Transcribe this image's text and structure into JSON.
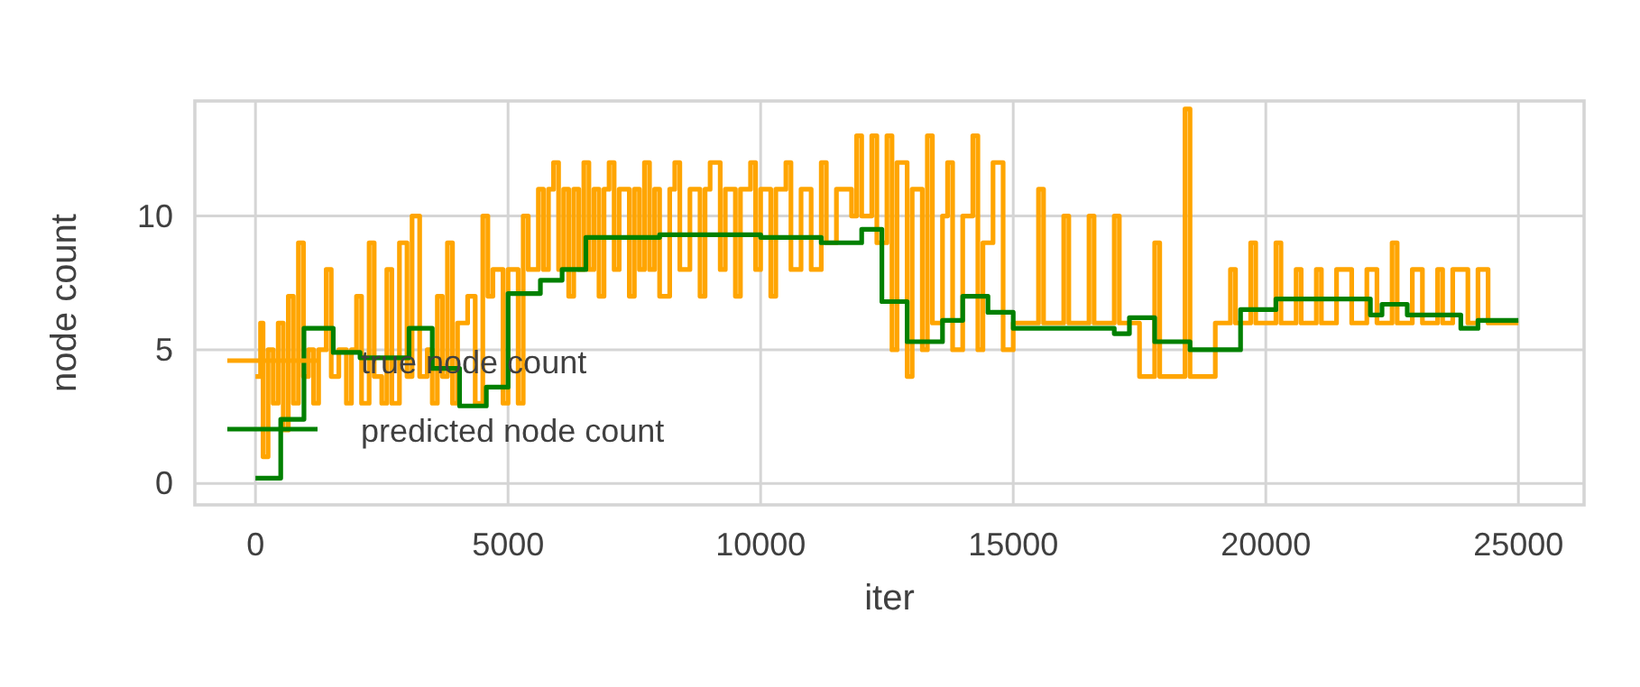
{
  "chart_data": {
    "type": "step",
    "xlabel": "iter",
    "ylabel": "node count",
    "xlim": [
      -1200,
      26300
    ],
    "ylim": [
      -0.8,
      14.3
    ],
    "xticks": [
      0,
      5000,
      10000,
      15000,
      20000,
      25000
    ],
    "yticks": [
      0,
      5,
      10
    ],
    "grid": true,
    "legend": "left",
    "series": [
      {
        "name": "true node count",
        "color": "#ffa500",
        "x": [
          0,
          100,
          150,
          250,
          350,
          450,
          550,
          650,
          750,
          850,
          950,
          1050,
          1150,
          1250,
          1400,
          1500,
          1650,
          1800,
          1900,
          2000,
          2100,
          2250,
          2350,
          2500,
          2600,
          2700,
          2850,
          3000,
          3100,
          3250,
          3400,
          3500,
          3600,
          3700,
          3800,
          3900,
          4000,
          4200,
          4350,
          4500,
          4600,
          4700,
          4900,
          5000,
          5200,
          5300,
          5400,
          5600,
          5700,
          5800,
          5900,
          6000,
          6100,
          6200,
          6300,
          6400,
          6500,
          6600,
          6700,
          6800,
          6900,
          7000,
          7100,
          7200,
          7400,
          7500,
          7600,
          7700,
          7800,
          7900,
          8000,
          8200,
          8300,
          8400,
          8600,
          8800,
          8900,
          9000,
          9200,
          9300,
          9500,
          9600,
          9800,
          9900,
          10000,
          10200,
          10300,
          10500,
          10600,
          10800,
          11000,
          11200,
          11300,
          11500,
          11800,
          11900,
          12000,
          12200,
          12300,
          12500,
          12600,
          12700,
          12900,
          13000,
          13200,
          13300,
          13400,
          13600,
          13700,
          13800,
          14000,
          14200,
          14300,
          14400,
          14600,
          14800,
          15000,
          15500,
          15600,
          16000,
          16100,
          16500,
          16600,
          17000,
          17100,
          17500,
          17800,
          17900,
          18400,
          18500,
          19000,
          19300,
          19400,
          19700,
          19800,
          20200,
          20300,
          20600,
          20700,
          21000,
          21100,
          21400,
          21700,
          22000,
          22200,
          22500,
          22600,
          22900,
          23100,
          23400,
          23500,
          23700,
          24000,
          24200,
          24400,
          25000
        ],
        "values": [
          4,
          6,
          1,
          5,
          3,
          6,
          2,
          7,
          3,
          9,
          4,
          5,
          3,
          5,
          8,
          4,
          5,
          3,
          5,
          7,
          3,
          9,
          4,
          3,
          8,
          3,
          9,
          4,
          10,
          4,
          5,
          3,
          7,
          4,
          9,
          3,
          6,
          7,
          3,
          10,
          7,
          8,
          3,
          8,
          3,
          10,
          8,
          11,
          8,
          11,
          12,
          8,
          11,
          7,
          11,
          8,
          12,
          8,
          11,
          7,
          11,
          12,
          8,
          11,
          7,
          11,
          8,
          12,
          8,
          11,
          7,
          11,
          12,
          8,
          11,
          7,
          11,
          12,
          8,
          11,
          7,
          11,
          12,
          8,
          11,
          7,
          11,
          12,
          8,
          11,
          8,
          12,
          9,
          11,
          10,
          13,
          10,
          13,
          9,
          13,
          5,
          12,
          4,
          11,
          5,
          13,
          6,
          10,
          12,
          5,
          10,
          13,
          5,
          9,
          12,
          5,
          6,
          11,
          6,
          10,
          6,
          10,
          6,
          10,
          6,
          4,
          9,
          4,
          14,
          4,
          6,
          8,
          6,
          9,
          6,
          9,
          6,
          8,
          6,
          8,
          6,
          8,
          6,
          8,
          6,
          9,
          6,
          8,
          6,
          8,
          6,
          8,
          6,
          8,
          6,
          6
        ]
      },
      {
        "name": "predicted node count",
        "color": "#008000",
        "x": [
          0,
          500,
          960,
          1540,
          2070,
          3040,
          3500,
          4040,
          4570,
          5000,
          5640,
          6070,
          6540,
          8000,
          10000,
          11200,
          12000,
          12400,
          12900,
          13600,
          14000,
          14500,
          15000,
          17000,
          17300,
          17800,
          18500,
          19500,
          20200,
          20900,
          22070,
          22300,
          22800,
          23860,
          24200,
          25000
        ],
        "values": [
          0.2,
          2.4,
          5.8,
          4.9,
          4.7,
          5.8,
          4.3,
          2.9,
          3.6,
          7.1,
          7.6,
          8,
          9.2,
          9.3,
          9.2,
          9,
          9.5,
          6.8,
          5.3,
          6.1,
          7,
          6.4,
          5.8,
          5.6,
          6.2,
          5.3,
          5,
          6.5,
          6.9,
          6.9,
          6.3,
          6.7,
          6.3,
          5.8,
          6.1,
          6.1
        ]
      }
    ]
  }
}
